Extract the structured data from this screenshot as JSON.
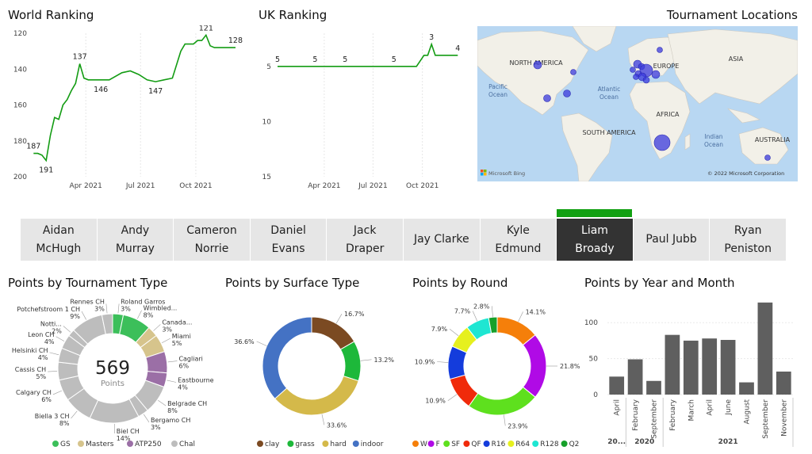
{
  "world_ranking": {
    "title": "World Ranking",
    "chart_data": {
      "type": "line",
      "yaxis_inverted": true,
      "ylim": [
        120,
        200
      ],
      "yticks": [
        "120",
        "140",
        "160",
        "180",
        "200"
      ],
      "xticks": [
        "Apr 2021",
        "Jul 2021",
        "Oct 2021"
      ],
      "points": [
        {
          "x": "2021-01-04",
          "y": 187
        },
        {
          "x": "2021-01-11",
          "y": 187
        },
        {
          "x": "2021-01-18",
          "y": 188
        },
        {
          "x": "2021-01-25",
          "y": 191
        },
        {
          "x": "2021-02-01",
          "y": 177
        },
        {
          "x": "2021-02-08",
          "y": 167
        },
        {
          "x": "2021-02-15",
          "y": 168
        },
        {
          "x": "2021-02-22",
          "y": 160
        },
        {
          "x": "2021-03-01",
          "y": 157
        },
        {
          "x": "2021-03-08",
          "y": 152
        },
        {
          "x": "2021-03-15",
          "y": 148
        },
        {
          "x": "2021-03-22",
          "y": 137
        },
        {
          "x": "2021-03-29",
          "y": 145
        },
        {
          "x": "2021-04-05",
          "y": 146
        },
        {
          "x": "2021-04-26",
          "y": 146
        },
        {
          "x": "2021-05-10",
          "y": 146
        },
        {
          "x": "2021-05-31",
          "y": 142
        },
        {
          "x": "2021-06-14",
          "y": 141
        },
        {
          "x": "2021-06-28",
          "y": 143
        },
        {
          "x": "2021-07-12",
          "y": 146
        },
        {
          "x": "2021-07-26",
          "y": 147
        },
        {
          "x": "2021-08-09",
          "y": 146
        },
        {
          "x": "2021-08-23",
          "y": 145
        },
        {
          "x": "2021-09-06",
          "y": 130
        },
        {
          "x": "2021-09-13",
          "y": 126
        },
        {
          "x": "2021-09-27",
          "y": 126
        },
        {
          "x": "2021-10-04",
          "y": 124
        },
        {
          "x": "2021-10-11",
          "y": 124
        },
        {
          "x": "2021-10-18",
          "y": 121
        },
        {
          "x": "2021-10-25",
          "y": 127
        },
        {
          "x": "2021-11-01",
          "y": 128
        },
        {
          "x": "2021-12-06",
          "y": 128
        }
      ],
      "data_labels": [
        {
          "x": "2021-01-04",
          "y": 187,
          "text": "187"
        },
        {
          "x": "2021-01-25",
          "y": 191,
          "text": "191"
        },
        {
          "x": "2021-03-22",
          "y": 137,
          "text": "137"
        },
        {
          "x": "2021-04-26",
          "y": 146,
          "text": "146"
        },
        {
          "x": "2021-07-26",
          "y": 147,
          "text": "147"
        },
        {
          "x": "2021-10-18",
          "y": 121,
          "text": "121"
        },
        {
          "x": "2021-12-06",
          "y": 128,
          "text": "128"
        }
      ],
      "color": "#139c13"
    }
  },
  "uk_ranking": {
    "title": "UK Ranking",
    "chart_data": {
      "type": "line",
      "yaxis_inverted": true,
      "ylim": [
        2,
        15
      ],
      "yticks": [
        "5",
        "10",
        "15"
      ],
      "xticks": [
        "Apr 2021",
        "Jul 2021",
        "Oct 2021"
      ],
      "points": [
        {
          "x": "2021-01-04",
          "y": 5
        },
        {
          "x": "2021-09-20",
          "y": 5
        },
        {
          "x": "2021-10-04",
          "y": 4
        },
        {
          "x": "2021-10-11",
          "y": 4
        },
        {
          "x": "2021-10-18",
          "y": 3
        },
        {
          "x": "2021-10-25",
          "y": 4
        },
        {
          "x": "2021-12-06",
          "y": 4
        }
      ],
      "data_labels": [
        {
          "x": "2021-01-04",
          "y": 5,
          "text": "5"
        },
        {
          "x": "2021-03-15",
          "y": 5,
          "text": "5"
        },
        {
          "x": "2021-05-10",
          "y": 5,
          "text": "5"
        },
        {
          "x": "2021-08-09",
          "y": 5,
          "text": "5"
        },
        {
          "x": "2021-10-18",
          "y": 3,
          "text": "3"
        },
        {
          "x": "2021-12-06",
          "y": 4,
          "text": "4"
        }
      ],
      "color": "#139c13"
    }
  },
  "map": {
    "title": "Tournament Locations",
    "labels": [
      "NORTH AMERICA",
      "EUROPE",
      "ASIA",
      "AFRICA",
      "SOUTH AMERICA",
      "AUSTRALIA"
    ],
    "ocean_labels": [
      "Pacific Ocean",
      "Atlantic Ocean",
      "Indian Ocean"
    ],
    "bing": "Microsoft Bing",
    "copyright": "© 2022 Microsoft Corporation",
    "bubble_color": "#3a3adc"
  },
  "players": [
    {
      "label": "Aidan\nMcHugh"
    },
    {
      "label": "Andy\nMurray"
    },
    {
      "label": "Cameron\nNorrie"
    },
    {
      "label": "Daniel\nEvans"
    },
    {
      "label": "Jack\nDraper"
    },
    {
      "label": "Jay Clarke"
    },
    {
      "label": "Kyle\nEdmund"
    },
    {
      "label": "Liam\nBroady"
    },
    {
      "label": "Paul Jubb"
    },
    {
      "label": "Ryan\nPeniston"
    }
  ],
  "selected_player_index": 7,
  "tournament_type": {
    "title": "Points by Tournament Type",
    "total": "569",
    "total_label": "Points",
    "chart_data": {
      "type": "pie",
      "donut": true,
      "slices": [
        {
          "label": "Roland Garros 3%",
          "value": 3,
          "group": "GS"
        },
        {
          "label": "Wimbled... 8%",
          "value": 8,
          "group": "GS"
        },
        {
          "label": "Canada... 3%",
          "value": 3,
          "group": "Masters"
        },
        {
          "label": "Miami 5%",
          "value": 5,
          "group": "Masters"
        },
        {
          "label": "Cagliari 6%",
          "value": 6,
          "group": "ATP250"
        },
        {
          "label": "Eastbourne 4%",
          "value": 4,
          "group": "ATP250"
        },
        {
          "label": "Belgrade CH 8%",
          "value": 8,
          "group": "Chal"
        },
        {
          "label": "Bergamo CH 3%",
          "value": 3,
          "group": "Chal"
        },
        {
          "label": "Biel CH 14%",
          "value": 14,
          "group": "Chal"
        },
        {
          "label": "Biella 3 CH 8%",
          "value": 8,
          "group": "Chal"
        },
        {
          "label": "Calgary CH 6%",
          "value": 6,
          "group": "Chal"
        },
        {
          "label": "Cassis CH 5%",
          "value": 5,
          "group": "Chal"
        },
        {
          "label": "Helsinki CH 4%",
          "value": 4,
          "group": "Chal"
        },
        {
          "label": "Leon CH 4%",
          "value": 4,
          "group": "Chal"
        },
        {
          "label": "Notti... 2%",
          "value": 2,
          "group": "Chal"
        },
        {
          "label": "Potchefstroom 1 CH 9%",
          "value": 9,
          "group": "Chal"
        },
        {
          "label": "Rennes CH 3%",
          "value": 3,
          "group": "Chal"
        }
      ],
      "legend": [
        {
          "label": "GS",
          "color": "#3cbf5a"
        },
        {
          "label": "Masters",
          "color": "#d6c48c"
        },
        {
          "label": "ATP250",
          "color": "#9b6fa6"
        },
        {
          "label": "Chal",
          "color": "#bdbdbd"
        }
      ]
    }
  },
  "surface_type": {
    "title": "Points by Surface Type",
    "chart_data": {
      "type": "pie",
      "donut": true,
      "slices": [
        {
          "label": "clay",
          "value": 16.7,
          "text": "16.7%",
          "color": "#7b4a22"
        },
        {
          "label": "grass",
          "value": 13.2,
          "text": "13.2%",
          "color": "#1db83a"
        },
        {
          "label": "hard",
          "value": 33.6,
          "text": "33.6%",
          "color": "#d4b94a"
        },
        {
          "label": "indoor",
          "value": 36.6,
          "text": "36.6%",
          "color": "#4472c4"
        }
      ]
    }
  },
  "round": {
    "title": "Points by Round",
    "chart_data": {
      "type": "pie",
      "donut": true,
      "slices": [
        {
          "label": "W",
          "value": 14.1,
          "text": "14.1%",
          "color": "#f57f0a"
        },
        {
          "label": "F",
          "value": 21.8,
          "text": "21.8%",
          "color": "#b00ae6"
        },
        {
          "label": "SF",
          "value": 23.9,
          "text": "23.9%",
          "color": "#5ee01e"
        },
        {
          "label": "QF",
          "value": 10.9,
          "text": "10.9%",
          "color": "#f02a0a"
        },
        {
          "label": "R16",
          "value": 10.9,
          "text": "10.9%",
          "color": "#143cdc"
        },
        {
          "label": "R64",
          "value": 7.9,
          "text": "7.9%",
          "color": "#e6f01e"
        },
        {
          "label": "R128",
          "value": 7.7,
          "text": "7.7%",
          "color": "#1ee6d2"
        },
        {
          "label": "Q2",
          "value": 2.8,
          "text": "2.8%",
          "color": "#16a02a"
        }
      ]
    }
  },
  "year_month": {
    "title": "Points by Year and Month",
    "chart_data": {
      "type": "bar",
      "ylim": [
        0,
        130
      ],
      "yticks": [
        "0",
        "50",
        "100"
      ],
      "color": "#5f5f5f",
      "categories": [
        "April",
        "February",
        "September",
        "February",
        "March",
        "April",
        "June",
        "August",
        "September",
        "November"
      ],
      "values": [
        25,
        49,
        19,
        83,
        75,
        78,
        76,
        17,
        128,
        32
      ],
      "years": [
        {
          "label": "20...",
          "span": 1
        },
        {
          "label": "2020",
          "span": 2
        },
        {
          "label": "2021",
          "span": 7
        }
      ]
    }
  }
}
